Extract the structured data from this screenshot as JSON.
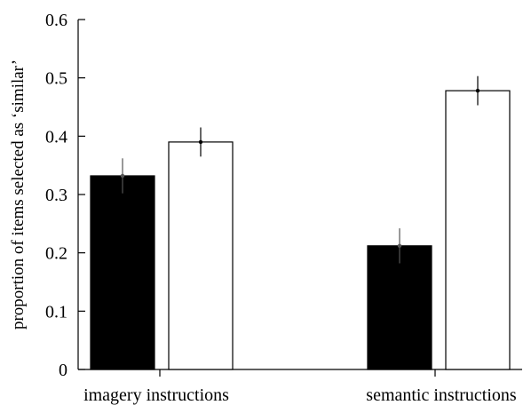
{
  "chart_data": {
    "type": "bar",
    "categories": [
      "imagery instructions",
      "semantic instructions"
    ],
    "series": [
      {
        "fill": "#000000",
        "values": [
          0.332,
          0.212
        ],
        "errors": [
          0.03,
          0.03
        ]
      },
      {
        "fill": "#ffffff",
        "values": [
          0.39,
          0.478
        ],
        "errors": [
          0.025,
          0.025
        ]
      }
    ],
    "ylabel": "proportion of items selected as ‘similar’",
    "xlabel": "",
    "title": "",
    "ylim": [
      0,
      0.6
    ],
    "yticks": [
      "0",
      "0.1",
      "0.2",
      "0.3",
      "0.4",
      "0.5",
      "0.6"
    ],
    "grid": false
  }
}
